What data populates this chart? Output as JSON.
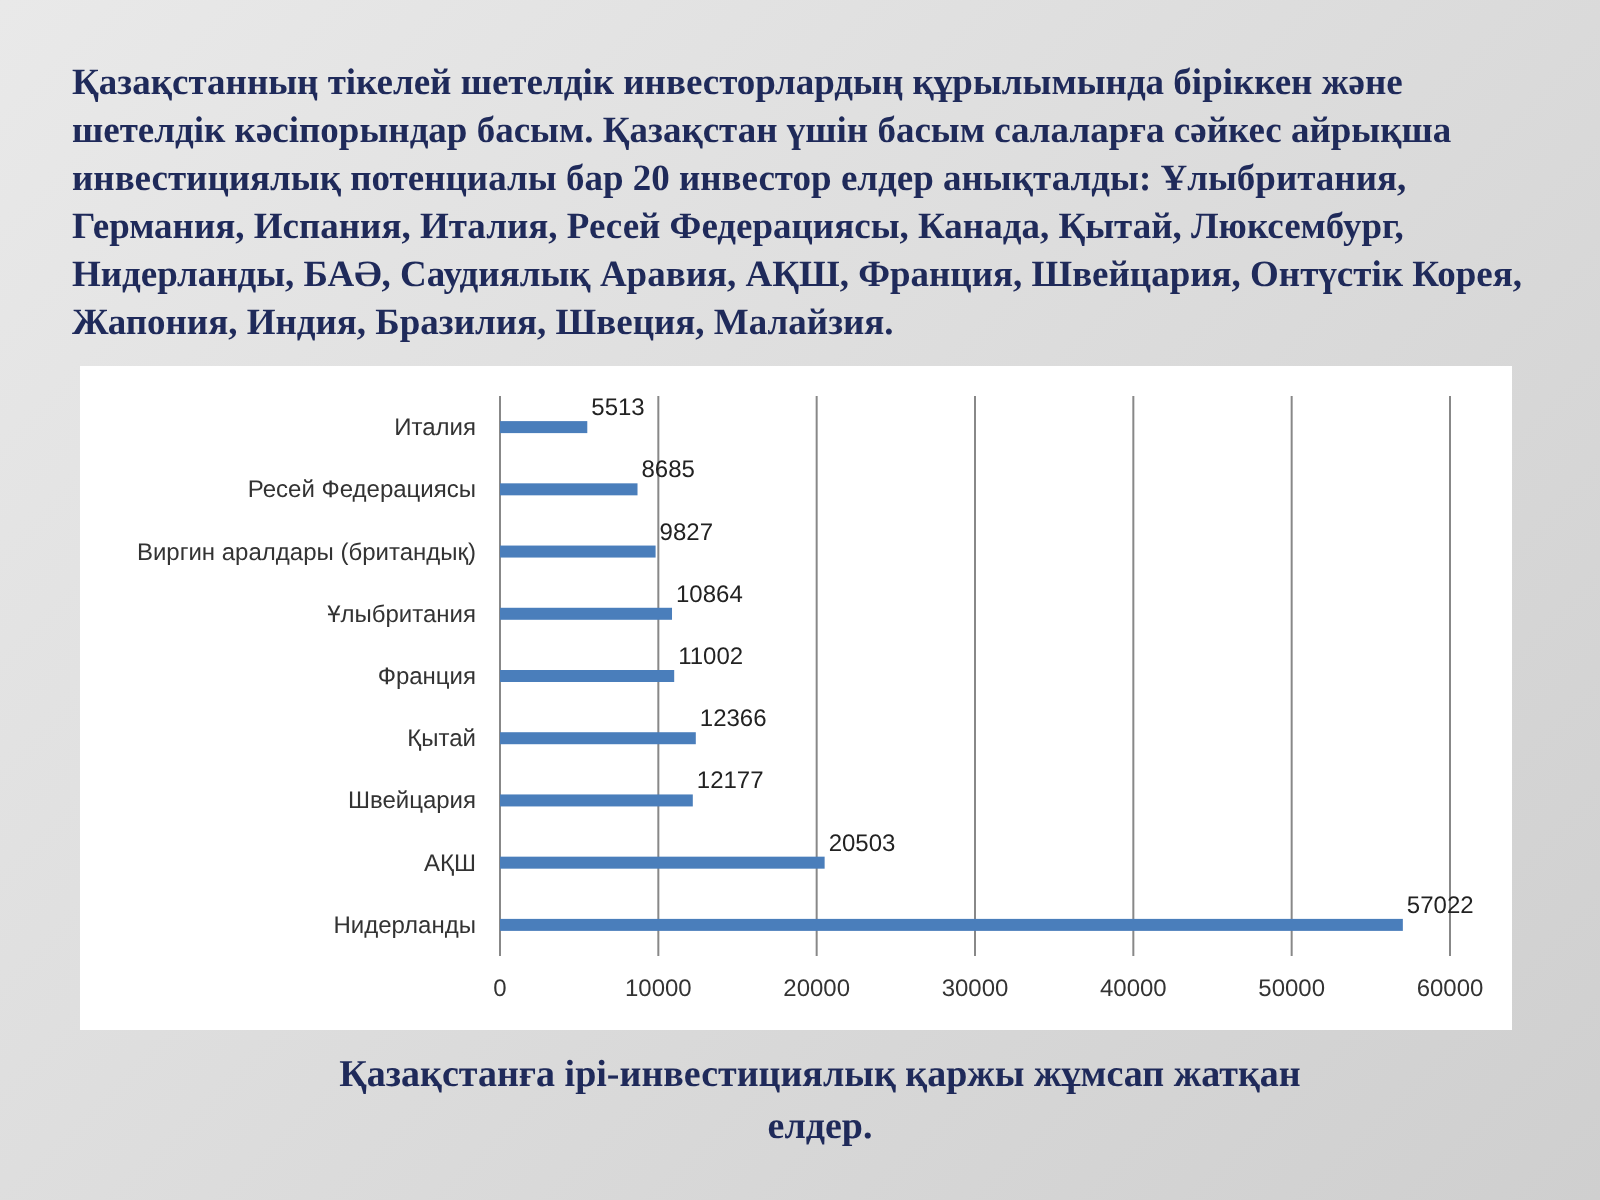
{
  "chart_data": {
    "type": "bar",
    "orientation": "horizontal",
    "title": "Қазақстанның тікелей шетелдік инвесторлардың құрылымында біріккен және шетелдік кәсіпорындар басым. Қазақстан үшін басым салаларға сәйкес айрықша инвестициялық потенциалы бар 20 инвестор елдер анықталды: Ұлыбритания, Германия, Испания, Италия, Ресей Федерациясы, Канада, Қытай, Люксембург, Нидерланды, БАӘ, Саудиялық Аравия, АҚШ, Франция, Швейцария, Онтүстік Корея, Жапония, Индия, Бразилия, Швеция, Малайзия.",
    "categories": [
      "Италия",
      "Ресей Федерациясы",
      "Виргин аралдары (британдық)",
      "Ұлыбритания",
      "Франция",
      "Қытай",
      "Швейцария",
      "АҚШ",
      "Нидерланды"
    ],
    "values": [
      5513,
      8685,
      9827,
      10864,
      11002,
      12366,
      12177,
      20503,
      57022
    ],
    "color": "#4a7ebb",
    "xlim": [
      0,
      60000
    ],
    "xticks": [
      0,
      10000,
      20000,
      30000,
      40000,
      50000,
      60000
    ],
    "grid": "x",
    "data_labels": true,
    "annotations": [
      "Қазақстанға ірі-инвестициялық қаржы  жұмсап жатқан елдер."
    ]
  }
}
